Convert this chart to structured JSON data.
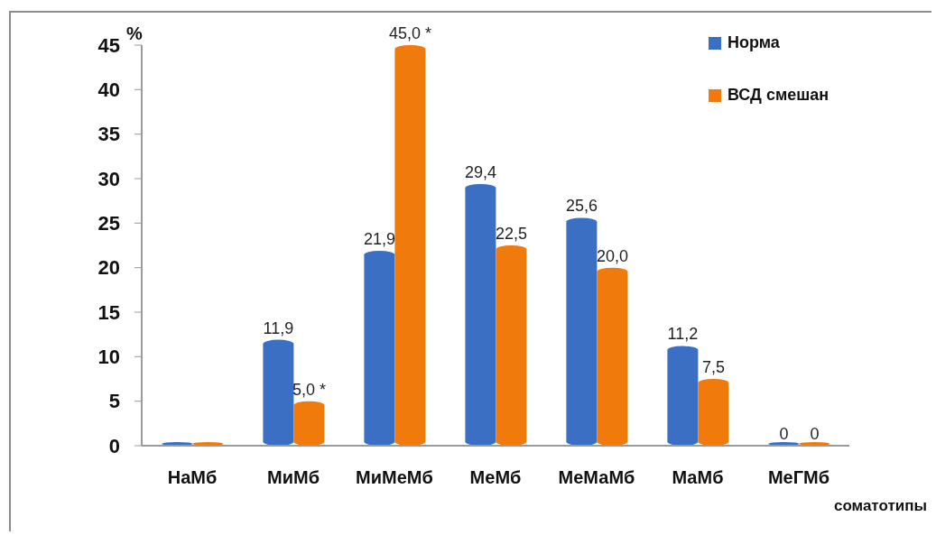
{
  "chart_data": {
    "type": "bar",
    "xlabel": "соматотипы",
    "ylabel": "%",
    "categories": [
      "НаМб",
      "МиМб",
      "МиМеМб",
      "МеМб",
      "МеМаМб",
      "МаМб",
      "МеГМб"
    ],
    "series": [
      {
        "name": "Норма",
        "color": "#3a6fc4",
        "values": [
          0,
          11.9,
          21.9,
          29.4,
          25.6,
          11.2,
          0
        ],
        "value_labels": [
          null,
          "11,9",
          "21,9",
          "29,4",
          "25,6",
          "11,2",
          "0"
        ]
      },
      {
        "name": "ВСД смешан",
        "color": "#f07a0c",
        "values": [
          0,
          5.0,
          45.0,
          22.5,
          20.0,
          7.5,
          0
        ],
        "value_labels": [
          null,
          "5,0 *",
          "45,0 *",
          "22,5",
          "20,0",
          "7,5",
          "0"
        ]
      }
    ],
    "ylim": [
      0,
      45
    ],
    "yticks": [
      0,
      5,
      10,
      15,
      20,
      25,
      30,
      35,
      40,
      45
    ],
    "legend": "top right"
  }
}
